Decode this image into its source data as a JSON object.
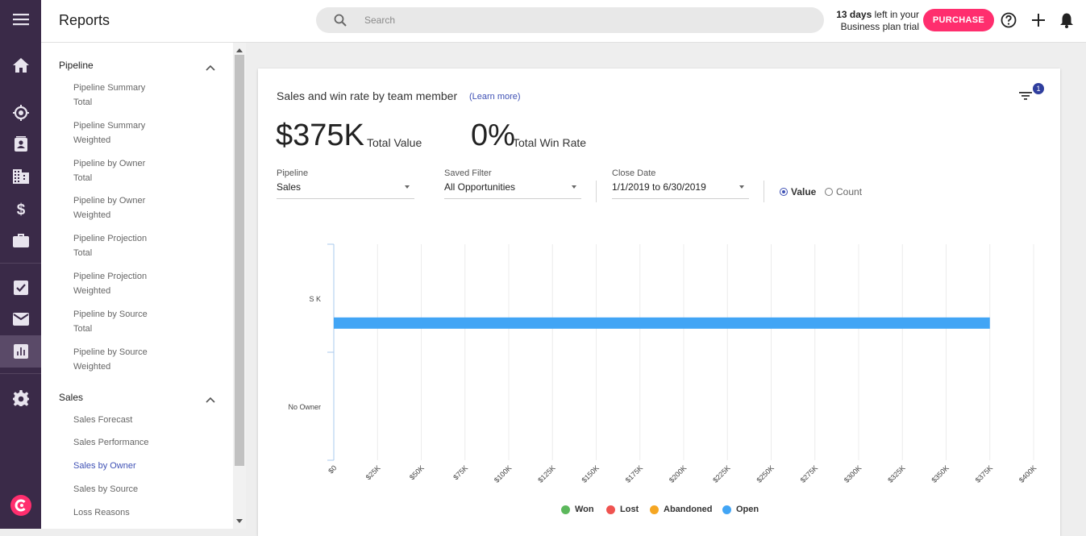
{
  "header": {
    "title": "Reports",
    "search_placeholder": "Search",
    "trial_days": "13 days",
    "trial_rest": " left in your",
    "trial_line2": "Business plan trial",
    "purchase_label": "PURCHASE"
  },
  "rail": {
    "items": [
      "menu-icon",
      "home-icon",
      "target-icon",
      "contacts-icon",
      "building-icon",
      "dollar-icon",
      "briefcase-icon",
      "check-icon",
      "mail-icon",
      "reports-icon",
      "gear-icon",
      "brand-logo"
    ]
  },
  "nav": {
    "sections": [
      {
        "title": "Pipeline",
        "items": [
          {
            "line1": "Pipeline Summary",
            "line2": "Total"
          },
          {
            "line1": "Pipeline Summary",
            "line2": "Weighted"
          },
          {
            "line1": "Pipeline by Owner",
            "line2": "Total"
          },
          {
            "line1": "Pipeline by Owner",
            "line2": "Weighted"
          },
          {
            "line1": "Pipeline Projection",
            "line2": "Total"
          },
          {
            "line1": "Pipeline Projection",
            "line2": "Weighted"
          },
          {
            "line1": "Pipeline by Source",
            "line2": "Total"
          },
          {
            "line1": "Pipeline by Source",
            "line2": "Weighted"
          }
        ]
      },
      {
        "title": "Sales",
        "items": [
          {
            "line1": "Sales Forecast"
          },
          {
            "line1": "Sales Performance"
          },
          {
            "line1": "Sales by Owner"
          },
          {
            "line1": "Sales by Source"
          },
          {
            "line1": "Loss Reasons"
          }
        ]
      }
    ],
    "selected": "Sales by Owner"
  },
  "report": {
    "title": "Sales and win rate by team member",
    "learn_more": "(Learn more)",
    "filter_badge": "1",
    "total_value": "$375K",
    "total_value_label": "Total Value",
    "win_rate": "0%",
    "win_rate_label": "Total Win Rate",
    "filters": {
      "pipeline": {
        "label": "Pipeline",
        "value": "Sales"
      },
      "saved_filter": {
        "label": "Saved Filter",
        "value": "All Opportunities"
      },
      "close_date": {
        "label": "Close Date",
        "value": "1/1/2019 to 6/30/2019"
      }
    },
    "mode": {
      "value_label": "Value",
      "count_label": "Count",
      "selected": "Value"
    }
  },
  "chart_data": {
    "type": "bar",
    "orientation": "horizontal",
    "categories": [
      "S K",
      "No Owner"
    ],
    "series": [
      {
        "name": "Won",
        "color": "#5cb85c",
        "values": [
          0,
          0
        ]
      },
      {
        "name": "Lost",
        "color": "#ef5350",
        "values": [
          0,
          0
        ]
      },
      {
        "name": "Abandoned",
        "color": "#f5a623",
        "values": [
          0,
          0
        ]
      },
      {
        "name": "Open",
        "color": "#42a5f5",
        "values": [
          375000,
          0
        ]
      }
    ],
    "xlim": [
      0,
      400000
    ],
    "x_ticks": [
      "$0",
      "$25K",
      "$50K",
      "$75K",
      "$100K",
      "$125K",
      "$150K",
      "$175K",
      "$200K",
      "$225K",
      "$250K",
      "$275K",
      "$300K",
      "$325K",
      "$350K",
      "$375K",
      "$400K"
    ],
    "grid": true,
    "legend_position": "bottom"
  }
}
